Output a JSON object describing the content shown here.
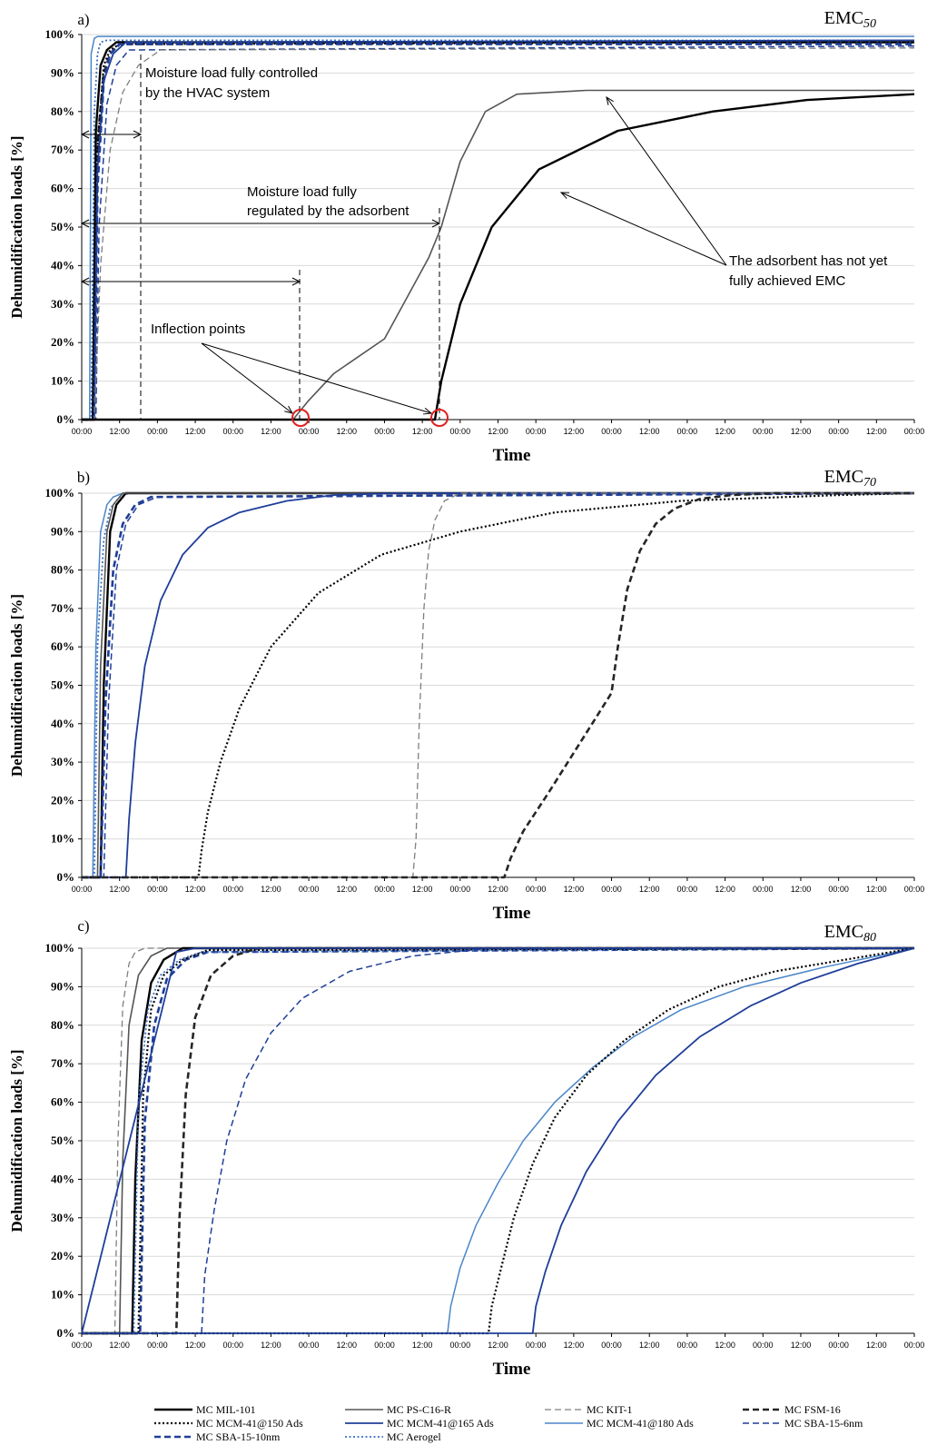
{
  "figure": {
    "x_label": "Time",
    "y_label": "Dehumidification loads [%]",
    "x_tick_labels": [
      "00:00",
      "12:00",
      "00:00",
      "12:00",
      "00:00",
      "12:00",
      "00:00",
      "12:00",
      "00:00",
      "12:00",
      "00:00",
      "12:00",
      "00:00",
      "12:00",
      "00:00",
      "12:00",
      "00:00",
      "12:00",
      "00:00",
      "12:00",
      "00:00",
      "12:00",
      "00:00"
    ],
    "y_tick_labels": [
      "0%",
      "10%",
      "20%",
      "30%",
      "40%",
      "50%",
      "60%",
      "70%",
      "80%",
      "90%",
      "100%"
    ]
  },
  "legend": [
    {
      "key": "mil101",
      "label": "MC MIL-101",
      "color": "#000000",
      "style": "solid",
      "width": 2.4
    },
    {
      "key": "psc16r",
      "label": "MC PS-C16-R",
      "color": "#555555",
      "style": "solid",
      "width": 1.6
    },
    {
      "key": "kit1",
      "label": "MC KIT-1",
      "color": "#7f7f7f",
      "style": "dash",
      "width": 1.3
    },
    {
      "key": "fsm16",
      "label": "MC FSM-16",
      "color": "#262626",
      "style": "dash",
      "width": 2.6
    },
    {
      "key": "mcm150",
      "label": "MC MCM-41@150 Ads",
      "color": "#000000",
      "style": "dot",
      "width": 2.2
    },
    {
      "key": "mcm165",
      "label": "MC MCM-41@165 Ads",
      "color": "#1f3e99",
      "style": "solid",
      "width": 1.8
    },
    {
      "key": "mcm180",
      "label": "MC MCM-41@180 Ads",
      "color": "#4a86c8",
      "style": "solid",
      "width": 1.5
    },
    {
      "key": "sba6",
      "label": "MC SBA-15-6nm",
      "color": "#1f3e99",
      "style": "dash",
      "width": 1.5
    },
    {
      "key": "sba10",
      "label": "MC SBA-15-10nm",
      "color": "#1f3e99",
      "style": "dash",
      "width": 2.6
    },
    {
      "key": "aerogel",
      "label": "MC Aerogel",
      "color": "#3a6ec0",
      "style": "dot",
      "width": 1.8
    }
  ],
  "annotations": {
    "hvac_line1": "Moisture load fully controlled",
    "hvac_line2": "by the HVAC system",
    "adsorbent_line1": "Moisture load fully",
    "adsorbent_line2": "regulated by the adsorbent",
    "inflection": "Inflection points",
    "emc_line1": "The adsorbent has not yet",
    "emc_line2": "fully achieved EMC"
  },
  "chart_data": [
    {
      "type": "line",
      "panel": "a)",
      "title": "EMC50",
      "title_main": "EMC",
      "title_sub": "50",
      "xlabel": "Time",
      "ylabel": "Dehumidification loads [%]",
      "x_unit": "hours",
      "xlim": [
        0,
        264
      ],
      "ylim": [
        0,
        100
      ],
      "x_ticks_hours": [
        0,
        12,
        24,
        36,
        48,
        60,
        72,
        84,
        96,
        108,
        120,
        132,
        144,
        156,
        168,
        180,
        192,
        204,
        216,
        228,
        240,
        252,
        264
      ],
      "series": [
        {
          "key": "mcm180",
          "x": [
            0,
            2.5,
            3,
            4,
            5,
            6,
            264
          ],
          "y": [
            0,
            0,
            95,
            99,
            99.5,
            99.5,
            99.5
          ]
        },
        {
          "key": "aerogel",
          "x": [
            0,
            3,
            4,
            5,
            6,
            8,
            264
          ],
          "y": [
            0,
            0,
            80,
            95,
            98,
            98.5,
            98.5
          ]
        },
        {
          "key": "mil101",
          "x": [
            0,
            3.5,
            4.5,
            6,
            8,
            11,
            264
          ],
          "y": [
            0,
            0,
            75,
            92,
            96,
            98,
            98
          ]
        },
        {
          "key": "fsm16",
          "x": [
            0,
            3.7,
            5,
            7,
            9,
            12,
            264
          ],
          "y": [
            0,
            0,
            72,
            90,
            95,
            97.5,
            98
          ]
        },
        {
          "key": "mcm150",
          "x": [
            0,
            3.5,
            5,
            7,
            9,
            12,
            264
          ],
          "y": [
            0,
            0,
            70,
            92,
            96,
            97.5,
            98
          ]
        },
        {
          "key": "sba10",
          "x": [
            0,
            4,
            5,
            7,
            9,
            12,
            264
          ],
          "y": [
            0,
            0,
            60,
            88,
            95,
            97.5,
            97.5
          ]
        },
        {
          "key": "sba6",
          "x": [
            0,
            4.5,
            5.5,
            8,
            11,
            15,
            264
          ],
          "y": [
            0,
            0,
            50,
            82,
            92,
            96,
            97
          ]
        },
        {
          "key": "mcm165",
          "x": [
            0,
            4,
            5,
            7,
            10,
            14,
            264
          ],
          "y": [
            0,
            0,
            65,
            88,
            95,
            98,
            98.5
          ]
        },
        {
          "key": "kit1",
          "x": [
            0,
            4,
            6,
            9,
            13,
            18,
            25,
            264
          ],
          "y": [
            0,
            0,
            40,
            70,
            85,
            92,
            96,
            96.5
          ]
        },
        {
          "key": "psc16r",
          "x": [
            0,
            67,
            72,
            80,
            96,
            110,
            114,
            120,
            128,
            138,
            160,
            264
          ],
          "y": [
            0,
            0,
            5,
            12,
            21,
            42,
            50,
            67,
            80,
            84.5,
            85.5,
            85.5
          ]
        },
        {
          "key": "mil101",
          "x": [
            0,
            112,
            114,
            120,
            130,
            145,
            170,
            200,
            230,
            264
          ],
          "y": [
            0,
            0,
            10,
            30,
            50,
            65,
            75,
            80,
            83,
            84.5
          ]
        }
      ]
    },
    {
      "type": "line",
      "panel": "b)",
      "title": "EMC70",
      "title_main": "EMC",
      "title_sub": "70",
      "xlabel": "Time",
      "ylabel": "Dehumidification loads [%]",
      "x_unit": "hours",
      "xlim": [
        0,
        264
      ],
      "ylim": [
        0,
        100
      ],
      "x_ticks_hours": [
        0,
        12,
        24,
        36,
        48,
        60,
        72,
        84,
        96,
        108,
        120,
        132,
        144,
        156,
        168,
        180,
        192,
        204,
        216,
        228,
        240,
        252,
        264
      ],
      "series": [
        {
          "key": "mcm180",
          "x": [
            0,
            3.5,
            4.5,
            6,
            8,
            10,
            13,
            264
          ],
          "y": [
            0,
            0,
            60,
            90,
            97,
            99,
            100,
            100
          ]
        },
        {
          "key": "aerogel",
          "x": [
            0,
            4,
            5,
            7,
            9,
            12,
            15,
            264
          ],
          "y": [
            0,
            0,
            60,
            88,
            96,
            99,
            100,
            100
          ]
        },
        {
          "key": "mil101",
          "x": [
            0,
            6,
            7,
            9,
            11,
            14,
            264
          ],
          "y": [
            0,
            0,
            50,
            90,
            97,
            100,
            100
          ]
        },
        {
          "key": "psc16r",
          "x": [
            0,
            5,
            6,
            8,
            10,
            13,
            264
          ],
          "y": [
            0,
            0,
            55,
            90,
            97,
            100,
            100
          ]
        },
        {
          "key": "sba10",
          "x": [
            0,
            6,
            7.5,
            10,
            13,
            17,
            22,
            264
          ],
          "y": [
            0,
            0,
            45,
            80,
            92,
            97,
            99,
            100
          ]
        },
        {
          "key": "sba6",
          "x": [
            0,
            7,
            8.5,
            11,
            14,
            18,
            24,
            264
          ],
          "y": [
            0,
            0,
            45,
            80,
            92,
            97,
            99,
            100
          ]
        },
        {
          "key": "mcm165",
          "x": [
            0,
            14,
            15,
            17,
            20,
            25,
            32,
            40,
            50,
            65,
            80,
            100,
            264
          ],
          "y": [
            0,
            0,
            15,
            35,
            55,
            72,
            84,
            91,
            95,
            98,
            99.5,
            100,
            100
          ]
        },
        {
          "key": "mcm150",
          "x": [
            0,
            37,
            38,
            40,
            44,
            50,
            60,
            75,
            95,
            120,
            150,
            190,
            240,
            264
          ],
          "y": [
            0,
            0,
            7,
            17,
            30,
            44,
            60,
            74,
            84,
            90,
            95,
            98,
            99.5,
            100
          ]
        },
        {
          "key": "kit1",
          "x": [
            0,
            105,
            106,
            107,
            108.5,
            110,
            112,
            115,
            120,
            264
          ],
          "y": [
            0,
            0,
            10,
            40,
            70,
            85,
            93,
            98,
            100,
            100
          ]
        },
        {
          "key": "fsm16",
          "x": [
            0,
            134,
            136,
            140,
            148,
            158,
            168,
            170,
            173,
            177,
            182,
            188,
            196,
            206,
            220,
            264
          ],
          "y": [
            0,
            0,
            5,
            12,
            22,
            35,
            48,
            60,
            75,
            85,
            92,
            96,
            98.5,
            99.5,
            100,
            100
          ]
        }
      ]
    },
    {
      "type": "line",
      "panel": "c)",
      "title": "EMC80",
      "title_main": "EMC",
      "title_sub": "80",
      "xlabel": "Time",
      "ylabel": "Dehumidification loads [%]",
      "x_unit": "hours",
      "xlim": [
        0,
        264
      ],
      "ylim": [
        0,
        100
      ],
      "x_ticks_hours": [
        0,
        12,
        24,
        36,
        48,
        60,
        72,
        84,
        96,
        108,
        120,
        132,
        144,
        156,
        168,
        180,
        192,
        204,
        216,
        228,
        240,
        252,
        264
      ],
      "series": [
        {
          "key": "kit1",
          "x": [
            0,
            10.5,
            11.5,
            13,
            15,
            17,
            20,
            264
          ],
          "y": [
            0,
            0,
            50,
            85,
            96,
            99,
            100,
            100
          ]
        },
        {
          "key": "psc16r",
          "x": [
            0,
            12,
            13,
            15,
            18,
            22,
            27,
            264
          ],
          "y": [
            0,
            0,
            45,
            80,
            93,
            98,
            100,
            100
          ]
        },
        {
          "key": "mil101",
          "x": [
            0,
            16,
            17,
            19,
            22,
            26,
            32,
            264
          ],
          "y": [
            0,
            0,
            40,
            76,
            91,
            97,
            100,
            100
          ]
        },
        {
          "key": "sba10",
          "x": [
            0,
            18.5,
            20,
            23,
            27,
            33,
            40,
            264
          ],
          "y": [
            0,
            0,
            55,
            80,
            92,
            97,
            99,
            100
          ]
        },
        {
          "key": "aerogel",
          "x": [
            0,
            16.5,
            18,
            21,
            25,
            31,
            38,
            264
          ],
          "y": [
            0,
            0,
            60,
            84,
            93,
            97,
            99,
            100
          ]
        },
        {
          "key": "mcm150",
          "x": [
            0,
            18,
            19.5,
            22,
            26,
            32,
            40,
            264
          ],
          "y": [
            0,
            0,
            62,
            84,
            93,
            97,
            99.5,
            100
          ]
        },
        {
          "key": "fsm16",
          "x": [
            0,
            30,
            31,
            33,
            36,
            41,
            48,
            56,
            264
          ],
          "y": [
            0,
            0,
            30,
            62,
            82,
            93,
            98,
            100,
            100
          ]
        },
        {
          "key": "sba6",
          "x": [
            0,
            38,
            39,
            42,
            46,
            52,
            60,
            70,
            85,
            105,
            130,
            264
          ],
          "y": [
            0,
            0,
            15,
            32,
            50,
            66,
            78,
            87,
            94,
            98,
            100,
            100
          ]
        },
        {
          "key": "mcm165",
          "x": [
            0,
            30,
            36,
            50,
            70,
            100,
            264
          ],
          "y": [
            0,
            99,
            100,
            100,
            100,
            100,
            100
          ]
        },
        {
          "key": "mcm180",
          "x": [
            0,
            116,
            117,
            120,
            125,
            132,
            140,
            150,
            162,
            175,
            190,
            210,
            235,
            264
          ],
          "y": [
            0,
            0,
            7,
            17,
            28,
            39,
            50,
            60,
            69,
            77,
            84,
            90,
            95,
            100
          ]
        },
        {
          "key": "mcm150",
          "x": [
            0,
            129,
            130,
            133,
            137,
            143,
            150,
            160,
            172,
            186,
            202,
            220,
            242,
            264
          ],
          "y": [
            0,
            0,
            7,
            17,
            30,
            44,
            56,
            67,
            76,
            84,
            90,
            94,
            97,
            100
          ]
        },
        {
          "key": "mcm165",
          "x": [
            0,
            143,
            144,
            147,
            152,
            160,
            170,
            182,
            196,
            212,
            228,
            246,
            264
          ],
          "y": [
            0,
            0,
            7,
            16,
            28,
            42,
            55,
            67,
            77,
            85,
            91,
            96,
            100
          ]
        }
      ]
    }
  ]
}
